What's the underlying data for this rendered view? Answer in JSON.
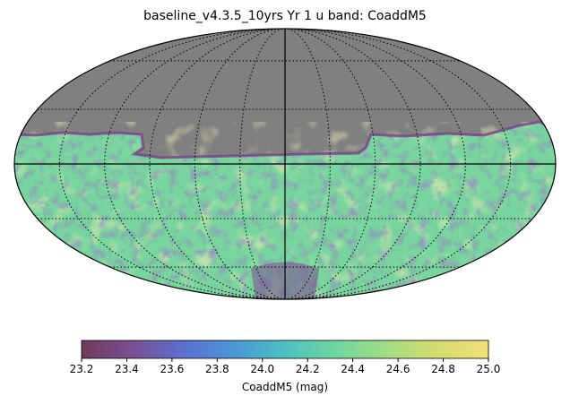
{
  "chart_data": {
    "type": "heatmap",
    "projection": "mollweide",
    "title": "baseline_v4.3.5_10yrs Yr 1 u band: CoaddM5",
    "metric": "CoaddM5",
    "masked_color": "#808080",
    "grid": true,
    "colorbar": {
      "label": "CoaddM5 (mag)",
      "vmin": 23.2,
      "vmax": 25.0,
      "ticks": [
        "23.2",
        "23.4",
        "23.6",
        "23.8",
        "24.0",
        "24.2",
        "24.4",
        "24.6",
        "24.8",
        "25.0"
      ],
      "colormap": [
        "#6f3a5c",
        "#7a4f93",
        "#5c6fcf",
        "#4a97d6",
        "#4cc0c0",
        "#6fd6a0",
        "#a3dd85",
        "#d5dc6d",
        "#f2e07a"
      ],
      "placement": "bottom"
    },
    "footprint_note": "Southern sky covered; northern region masked (no data)",
    "value_range": [
      23.2,
      25.0
    ],
    "typical_value": 24.3
  }
}
